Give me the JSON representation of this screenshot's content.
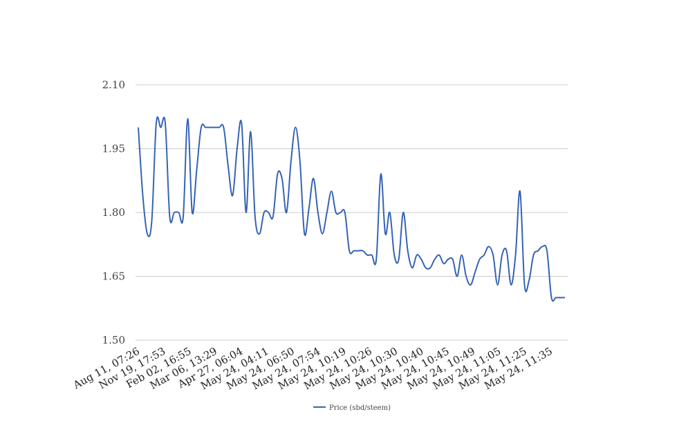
{
  "chart_data": {
    "type": "line",
    "title": "",
    "xlabel": "",
    "ylabel": "",
    "ylim": [
      1.5,
      2.1
    ],
    "y_ticks": [
      "1.50",
      "1.65",
      "1.80",
      "1.95",
      "2.10"
    ],
    "x_tick_labels": [
      "Aug 11, 07:26",
      "Nov 19, 17:53",
      "Feb 02, 16:55",
      "Mar 06, 13:29",
      "Apr 27, 06:04",
      "May 24, 04:11",
      "May 24, 06:50",
      "May 24, 07:54",
      "May 24, 10:19",
      "May 24, 10:26",
      "May 24, 10:30",
      "May 24, 10:40",
      "May 24, 10:45",
      "May 24, 10:49",
      "May 24, 11:05",
      "May 24, 11:25",
      "May 24, 11:35"
    ],
    "grid": true,
    "legend_position": "bottom",
    "series": [
      {
        "name": "Price (sbd/steem)",
        "color": "#3463b4",
        "values": [
          2.0,
          1.84,
          1.75,
          1.78,
          2.01,
          2.0,
          2.01,
          1.79,
          1.8,
          1.8,
          1.79,
          2.02,
          1.8,
          1.9,
          2.0,
          2.0,
          2.0,
          2.0,
          2.0,
          2.0,
          1.91,
          1.84,
          1.95,
          2.01,
          1.8,
          1.99,
          1.79,
          1.75,
          1.8,
          1.8,
          1.79,
          1.89,
          1.88,
          1.8,
          1.92,
          2.0,
          1.92,
          1.75,
          1.81,
          1.88,
          1.8,
          1.75,
          1.8,
          1.85,
          1.8,
          1.8,
          1.8,
          1.71,
          1.71,
          1.71,
          1.71,
          1.7,
          1.7,
          1.69,
          1.89,
          1.75,
          1.8,
          1.7,
          1.69,
          1.8,
          1.71,
          1.67,
          1.7,
          1.69,
          1.67,
          1.67,
          1.69,
          1.7,
          1.68,
          1.69,
          1.69,
          1.65,
          1.7,
          1.65,
          1.63,
          1.66,
          1.69,
          1.7,
          1.72,
          1.7,
          1.63,
          1.7,
          1.71,
          1.63,
          1.7,
          1.85,
          1.63,
          1.64,
          1.7,
          1.71,
          1.72,
          1.71,
          1.6,
          1.6,
          1.6,
          1.6
        ]
      }
    ]
  }
}
